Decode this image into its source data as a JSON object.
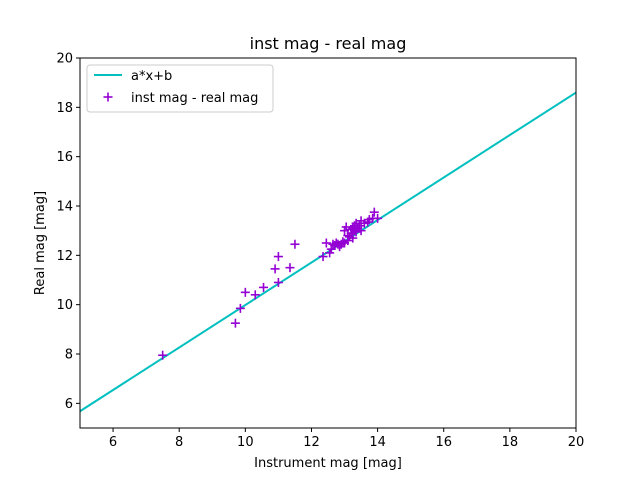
{
  "chart_data": {
    "type": "scatter",
    "title": "inst mag - real mag",
    "xlabel": "Instrument mag [mag]",
    "ylabel": "Real mag [mag]",
    "xlim": [
      5,
      20
    ],
    "ylim": [
      5,
      20
    ],
    "xticks": [
      "6",
      "8",
      "10",
      "12",
      "14",
      "16",
      "18",
      "20"
    ],
    "yticks": [
      "6",
      "8",
      "10",
      "12",
      "14",
      "16",
      "18",
      "20"
    ],
    "grid": false,
    "legend_position": "top-left",
    "fit_line": {
      "name": "a*x+b",
      "color": "#00bfbf",
      "x": [
        5,
        20
      ],
      "y": [
        5.68,
        18.6
      ]
    },
    "series": [
      {
        "name": "inst mag - real mag",
        "marker": "plus",
        "color": "#9400d3",
        "points": [
          [
            7.5,
            7.95
          ],
          [
            9.7,
            9.25
          ],
          [
            9.85,
            9.85
          ],
          [
            10.0,
            10.5
          ],
          [
            10.3,
            10.4
          ],
          [
            10.55,
            10.7
          ],
          [
            10.9,
            11.45
          ],
          [
            11.0,
            11.95
          ],
          [
            11.0,
            10.9
          ],
          [
            11.35,
            11.5
          ],
          [
            11.5,
            12.45
          ],
          [
            12.35,
            11.95
          ],
          [
            12.45,
            12.5
          ],
          [
            12.55,
            12.1
          ],
          [
            12.6,
            12.25
          ],
          [
            12.65,
            12.45
          ],
          [
            12.7,
            12.4
          ],
          [
            12.75,
            12.5
          ],
          [
            12.8,
            12.45
          ],
          [
            12.85,
            12.35
          ],
          [
            12.9,
            12.45
          ],
          [
            12.95,
            12.55
          ],
          [
            13.0,
            12.5
          ],
          [
            13.0,
            13.0
          ],
          [
            13.05,
            13.15
          ],
          [
            13.1,
            12.6
          ],
          [
            13.1,
            12.8
          ],
          [
            13.15,
            12.75
          ],
          [
            13.2,
            12.9
          ],
          [
            13.2,
            13.05
          ],
          [
            13.25,
            12.7
          ],
          [
            13.25,
            13.1
          ],
          [
            13.3,
            13.0
          ],
          [
            13.3,
            13.2
          ],
          [
            13.35,
            12.95
          ],
          [
            13.35,
            13.3
          ],
          [
            13.4,
            13.1
          ],
          [
            13.45,
            13.2
          ],
          [
            13.5,
            13.4
          ],
          [
            13.5,
            13.0
          ],
          [
            13.6,
            13.3
          ],
          [
            13.7,
            13.35
          ],
          [
            13.75,
            13.45
          ],
          [
            13.85,
            13.5
          ],
          [
            13.9,
            13.75
          ],
          [
            14.0,
            13.5
          ]
        ]
      }
    ]
  }
}
